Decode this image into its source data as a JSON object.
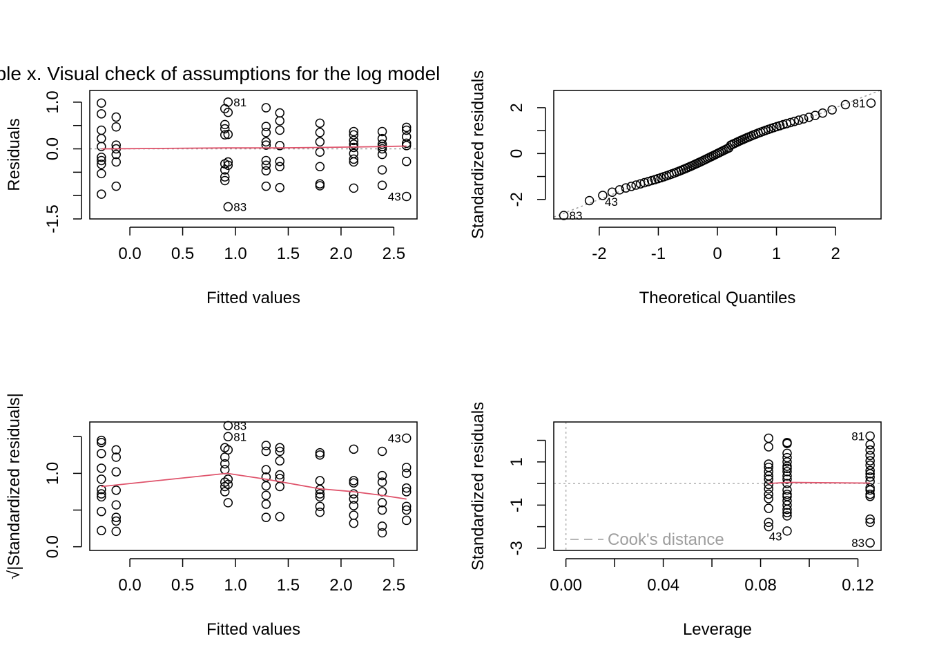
{
  "title": "Table x. Visual check of assumptions for the log model",
  "chart_data": [
    {
      "type": "scatter",
      "panel": "residuals-vs-fitted",
      "xlabel": "Fitted values",
      "ylabel": "Residuals",
      "xlim": [
        -0.38,
        2.72
      ],
      "ylim": [
        -1.5,
        1.25
      ],
      "xticks": [
        0.0,
        0.5,
        1.0,
        1.5,
        2.0,
        2.5
      ],
      "xtick_labels": [
        "0.0",
        "0.5",
        "1.0",
        "1.5",
        "2.0",
        "2.5"
      ],
      "yticks": [
        -1.5,
        -1.0,
        -0.5,
        0.0,
        0.5,
        1.0
      ],
      "ytick_labels": [
        "-1.5",
        "",
        "",
        "0.0",
        "",
        "1.0"
      ],
      "reference_line": {
        "y": 0,
        "style": "dotted",
        "color": "#9e9e9e"
      },
      "smooth": {
        "color": "#df536b",
        "x": [
          -0.27,
          0.92,
          1.29,
          1.41,
          1.8,
          2.12,
          2.39,
          2.62
        ],
        "y": [
          0.0,
          0.02,
          0.02,
          0.02,
          0.03,
          0.04,
          0.05,
          0.06
        ]
      },
      "groups": [
        {
          "x": -0.27,
          "y": [
            0.98,
            0.75,
            0.4,
            0.22,
            0.05,
            -0.18,
            -0.25,
            -0.33,
            -0.53,
            -0.97
          ]
        },
        {
          "x": -0.13,
          "y": [
            0.68,
            0.47,
            0.08,
            0.0,
            -0.12,
            -0.28,
            -0.8
          ]
        },
        {
          "x": 0.9,
          "y": [
            0.86,
            0.52,
            0.43,
            0.3,
            -0.32,
            -0.45,
            -0.6,
            -0.68
          ]
        },
        {
          "x": 0.93,
          "y": [
            1.0,
            0.78,
            0.31,
            -0.28,
            -0.35,
            -1.24
          ]
        },
        {
          "x": 1.29,
          "y": [
            0.88,
            0.48,
            0.35,
            0.15,
            0.08,
            -0.25,
            -0.35,
            -0.47,
            -0.8
          ]
        },
        {
          "x": 1.42,
          "y": [
            0.77,
            0.6,
            0.4,
            0.07,
            -0.27,
            -0.38,
            -0.83
          ]
        },
        {
          "x": 1.8,
          "y": [
            0.55,
            0.35,
            0.15,
            -0.07,
            -0.38,
            -0.75,
            -0.79
          ]
        },
        {
          "x": 2.12,
          "y": [
            0.37,
            0.3,
            0.18,
            0.1,
            0.03,
            -0.1,
            -0.22,
            -0.28,
            -0.84
          ]
        },
        {
          "x": 2.39,
          "y": [
            0.37,
            0.22,
            0.1,
            0.05,
            0.0,
            -0.12,
            -0.45,
            -0.78
          ]
        },
        {
          "x": 2.62,
          "y": [
            0.46,
            0.4,
            0.26,
            0.12,
            0.07,
            -0.27,
            -1.02
          ]
        }
      ],
      "point_labels": [
        {
          "text": "81",
          "x": 0.93,
          "y": 1.0
        },
        {
          "text": "83",
          "x": 0.93,
          "y": -1.24
        },
        {
          "text": "43",
          "x": 2.62,
          "y": -1.02
        }
      ]
    },
    {
      "type": "scatter",
      "panel": "normal-qq",
      "xlabel": "Theoretical Quantiles",
      "ylabel": "Standardized residuals",
      "xlim": [
        -2.77,
        2.77
      ],
      "ylim": [
        -2.85,
        2.75
      ],
      "xticks": [
        -2,
        -1,
        0,
        1,
        2
      ],
      "xtick_labels": [
        "-2",
        "-1",
        "0",
        "1",
        "2"
      ],
      "yticks": [
        -2,
        -1,
        0,
        1,
        2
      ],
      "ytick_labels": [
        "-2",
        "",
        "0",
        "",
        "2"
      ],
      "reference_line": {
        "intercept": 0,
        "slope": 1.0,
        "style": "dotted",
        "color": "#9e9e9e"
      },
      "n_points": 81,
      "qq_range": [
        -2.6,
        2.6
      ],
      "point_labels": [
        {
          "text": "81",
          "x": 2.6,
          "y": 2.2
        },
        {
          "text": "83",
          "x": -2.6,
          "y": -2.7
        },
        {
          "text": "43",
          "x": -2.0,
          "y": -2.1
        }
      ]
    },
    {
      "type": "scatter",
      "panel": "scale-location",
      "xlabel": "Fitted values",
      "ylabel": "√|Standardized residuals|",
      "xlim": [
        -0.38,
        2.72
      ],
      "ylim": [
        -0.05,
        1.7
      ],
      "xticks": [
        0.0,
        0.5,
        1.0,
        1.5,
        2.0,
        2.5
      ],
      "xtick_labels": [
        "0.0",
        "0.5",
        "1.0",
        "1.5",
        "2.0",
        "2.5"
      ],
      "yticks": [
        0.0,
        0.5,
        1.0,
        1.5
      ],
      "ytick_labels": [
        "0.0",
        "",
        "1.0",
        ""
      ],
      "smooth": {
        "color": "#df536b",
        "x": [
          -0.27,
          0.92,
          1.29,
          1.41,
          1.8,
          2.12,
          2.39,
          2.62
        ],
        "y": [
          0.82,
          1.0,
          0.92,
          0.89,
          0.79,
          0.75,
          0.7,
          0.65
        ]
      },
      "groups": [
        {
          "x": -0.27,
          "y": [
            1.45,
            1.42,
            1.27,
            1.07,
            0.92,
            0.78,
            0.72,
            0.68,
            0.48,
            0.22
          ]
        },
        {
          "x": -0.13,
          "y": [
            1.32,
            1.22,
            1.02,
            0.77,
            0.57,
            0.4,
            0.35,
            0.21
          ]
        },
        {
          "x": 0.9,
          "y": [
            1.35,
            1.22,
            1.13,
            1.05,
            0.88,
            0.82,
            0.75
          ]
        },
        {
          "x": 0.93,
          "y": [
            1.65,
            1.5,
            1.32,
            0.92,
            0.85,
            0.6
          ]
        },
        {
          "x": 1.29,
          "y": [
            1.38,
            1.3,
            1.05,
            0.95,
            0.83,
            0.7,
            0.58,
            0.4
          ]
        },
        {
          "x": 1.42,
          "y": [
            1.35,
            1.3,
            1.17,
            0.98,
            0.93,
            0.82,
            0.41
          ]
        },
        {
          "x": 1.8,
          "y": [
            1.28,
            1.25,
            0.9,
            0.78,
            0.72,
            0.68,
            0.55,
            0.47
          ]
        },
        {
          "x": 2.12,
          "y": [
            1.33,
            0.9,
            0.87,
            0.72,
            0.65,
            0.56,
            0.43,
            0.32
          ]
        },
        {
          "x": 2.39,
          "y": [
            1.3,
            0.97,
            0.88,
            0.75,
            0.6,
            0.5,
            0.28,
            0.19
          ]
        },
        {
          "x": 2.62,
          "y": [
            1.48,
            1.08,
            1.0,
            0.8,
            0.75,
            0.55,
            0.5,
            0.36
          ]
        }
      ],
      "point_labels": [
        {
          "text": "83",
          "x": 0.93,
          "y": 1.65
        },
        {
          "text": "81",
          "x": 0.93,
          "y": 1.5
        },
        {
          "text": "43",
          "x": 2.62,
          "y": 1.48
        }
      ]
    },
    {
      "type": "scatter",
      "panel": "residuals-vs-leverage",
      "xlabel": "Leverage",
      "ylabel": "Standardized residuals",
      "xlim": [
        -0.005,
        0.1295
      ],
      "ylim": [
        -3.1,
        2.85
      ],
      "xticks": [
        0.0,
        0.02,
        0.04,
        0.06,
        0.08,
        0.1,
        0.12
      ],
      "xtick_labels": [
        "0.00",
        "",
        "0.04",
        "",
        "0.08",
        "",
        "0.12"
      ],
      "yticks": [
        -3,
        -2,
        -1,
        0,
        1,
        2
      ],
      "ytick_labels": [
        "-3",
        "",
        "-1",
        "",
        "1",
        ""
      ],
      "reference_lines": [
        {
          "y": 0,
          "style": "dotted"
        },
        {
          "x": 0,
          "style": "dotted"
        }
      ],
      "legend": {
        "text": "Cook's distance",
        "position": "bottom-left",
        "style": "dashed"
      },
      "smooth": {
        "color": "#df536b",
        "x": [
          0.0833,
          0.0909,
          0.125
        ],
        "y": [
          0.0,
          0.05,
          0.02
        ]
      },
      "groups": [
        {
          "x": 0.0833,
          "y": [
            2.1,
            1.7,
            0.9,
            0.75,
            0.55,
            0.35,
            0.2,
            -0.05,
            -0.25,
            -0.5,
            -0.7,
            -1.15,
            -1.8,
            -2.0
          ]
        },
        {
          "x": 0.0909,
          "y": [
            1.9,
            1.85,
            1.4,
            1.2,
            1.0,
            0.8,
            0.7,
            0.55,
            0.35,
            0.2,
            0.0,
            -0.3,
            -0.5,
            -0.6,
            -0.8,
            -1.0,
            -1.2,
            -1.35,
            -1.5,
            -2.2
          ]
        },
        {
          "x": 0.125,
          "y": [
            2.2,
            1.8,
            1.55,
            1.3,
            1.05,
            0.85,
            0.6,
            0.45,
            0.3,
            0.1,
            -0.2,
            -0.3,
            -0.5,
            -0.6,
            -1.65,
            -1.8,
            -2.75
          ]
        }
      ],
      "point_labels": [
        {
          "text": "81",
          "x": 0.125,
          "y": 2.2
        },
        {
          "text": "43",
          "x": 0.0833,
          "y": -2.0
        },
        {
          "text": "83",
          "x": 0.125,
          "y": -2.75
        }
      ]
    }
  ]
}
